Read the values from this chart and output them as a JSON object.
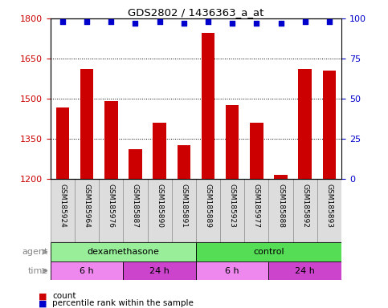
{
  "title": "GDS2802 / 1436363_a_at",
  "samples": [
    "GSM185924",
    "GSM185964",
    "GSM185976",
    "GSM185887",
    "GSM185890",
    "GSM185891",
    "GSM185889",
    "GSM185923",
    "GSM185977",
    "GSM185888",
    "GSM185892",
    "GSM185893"
  ],
  "bar_values": [
    1465,
    1610,
    1490,
    1310,
    1410,
    1325,
    1745,
    1475,
    1410,
    1215,
    1610,
    1605
  ],
  "percentile_values": [
    98,
    98,
    98,
    97,
    98,
    97,
    98,
    97,
    97,
    97,
    98,
    98
  ],
  "bar_color": "#cc0000",
  "percentile_color": "#0000cc",
  "ylim_left": [
    1200,
    1800
  ],
  "ylim_right": [
    0,
    100
  ],
  "yticks_left": [
    1200,
    1350,
    1500,
    1650,
    1800
  ],
  "yticks_right": [
    0,
    25,
    50,
    75,
    100
  ],
  "agent_groups": [
    {
      "label": "dexamethasone",
      "start": 0,
      "end": 6,
      "color": "#99ee99"
    },
    {
      "label": "control",
      "start": 6,
      "end": 12,
      "color": "#55dd55"
    }
  ],
  "time_groups": [
    {
      "label": "6 h",
      "start": 0,
      "end": 3,
      "color": "#ee88ee"
    },
    {
      "label": "24 h",
      "start": 3,
      "end": 6,
      "color": "#cc44cc"
    },
    {
      "label": "6 h",
      "start": 6,
      "end": 9,
      "color": "#ee88ee"
    },
    {
      "label": "24 h",
      "start": 9,
      "end": 12,
      "color": "#cc44cc"
    }
  ],
  "legend_items": [
    {
      "label": "count",
      "color": "#cc0000"
    },
    {
      "label": "percentile rank within the sample",
      "color": "#0000cc"
    }
  ],
  "agent_label": "agent",
  "time_label": "time",
  "bar_width": 0.55,
  "sample_box_color": "#dddddd",
  "yticklabel_left_color": "#cc0000",
  "yticklabel_right_color": "#0000cc",
  "label_color": "#888888"
}
